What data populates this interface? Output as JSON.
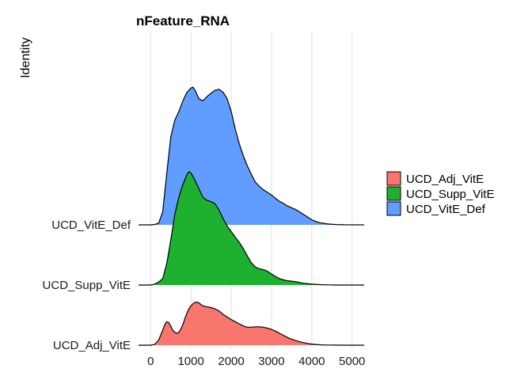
{
  "chart_data": {
    "type": "area",
    "subtype": "ridgeline",
    "title": "nFeature_RNA",
    "xlabel": "",
    "ylabel": "Identity",
    "xlim": [
      -300,
      5300
    ],
    "xticks": [
      0,
      1000,
      2000,
      3000,
      4000,
      5000
    ],
    "xtick_labels": [
      "0",
      "1000",
      "2000",
      "3000",
      "4000",
      "5000"
    ],
    "grid": "vertical",
    "legend_position": "right",
    "series": [
      {
        "name": "UCD_Adj_VitE",
        "color": "#F8766D",
        "x": [
          -300,
          0,
          100,
          200,
          300,
          350,
          400,
          450,
          500,
          550,
          600,
          650,
          700,
          750,
          800,
          850,
          900,
          950,
          1000,
          1050,
          1100,
          1150,
          1200,
          1250,
          1300,
          1400,
          1500,
          1600,
          1700,
          1800,
          1900,
          2000,
          2100,
          2200,
          2300,
          2400,
          2500,
          2600,
          2700,
          2800,
          2900,
          3000,
          3100,
          3200,
          3300,
          3400,
          3500,
          3600,
          3700,
          3800,
          3900,
          4000,
          4200,
          4400,
          4600,
          4800,
          5000,
          5300
        ],
        "density": [
          0,
          0,
          0.02,
          0.12,
          0.35,
          0.48,
          0.55,
          0.53,
          0.45,
          0.35,
          0.3,
          0.28,
          0.3,
          0.38,
          0.48,
          0.62,
          0.75,
          0.85,
          0.92,
          0.97,
          1.0,
          1.01,
          0.99,
          0.95,
          0.92,
          0.9,
          0.88,
          0.85,
          0.8,
          0.72,
          0.66,
          0.6,
          0.55,
          0.5,
          0.45,
          0.42,
          0.42,
          0.43,
          0.43,
          0.42,
          0.4,
          0.37,
          0.33,
          0.28,
          0.23,
          0.18,
          0.14,
          0.11,
          0.08,
          0.06,
          0.04,
          0.025,
          0.01,
          0.004,
          0.001,
          0,
          0,
          0
        ]
      },
      {
        "name": "UCD_Supp_VitE",
        "color": "#1DB12F",
        "x": [
          -300,
          0,
          100,
          200,
          300,
          400,
          500,
          600,
          700,
          800,
          900,
          950,
          1000,
          1100,
          1200,
          1300,
          1400,
          1500,
          1600,
          1700,
          1800,
          1900,
          2000,
          2100,
          2200,
          2300,
          2400,
          2500,
          2600,
          2700,
          2800,
          2900,
          3000,
          3100,
          3200,
          3300,
          3400,
          3500,
          3600,
          3700,
          3800,
          3900,
          4000,
          4200,
          4400,
          4600,
          5300
        ],
        "density": [
          0,
          0,
          0.02,
          0.07,
          0.15,
          0.5,
          1.05,
          1.65,
          2.05,
          2.35,
          2.58,
          2.65,
          2.62,
          2.45,
          2.25,
          2.05,
          1.98,
          1.95,
          1.9,
          1.75,
          1.55,
          1.38,
          1.25,
          1.12,
          1.0,
          0.85,
          0.68,
          0.52,
          0.42,
          0.38,
          0.36,
          0.32,
          0.26,
          0.2,
          0.15,
          0.12,
          0.1,
          0.09,
          0.08,
          0.06,
          0.04,
          0.03,
          0.02,
          0.01,
          0.004,
          0,
          0
        ]
      },
      {
        "name": "UCD_VitE_Def",
        "color": "#619CFF",
        "x": [
          -300,
          0,
          100,
          200,
          300,
          400,
          500,
          600,
          700,
          800,
          900,
          1000,
          1050,
          1100,
          1200,
          1300,
          1400,
          1500,
          1600,
          1700,
          1800,
          1900,
          2000,
          2100,
          2200,
          2300,
          2400,
          2500,
          2600,
          2700,
          2800,
          2900,
          3000,
          3100,
          3200,
          3300,
          3400,
          3500,
          3600,
          3700,
          3800,
          3900,
          4000,
          4100,
          4200,
          4400,
          4600,
          4800,
          5300
        ],
        "density": [
          0,
          0,
          0.01,
          0.04,
          0.3,
          1.2,
          2.05,
          2.45,
          2.65,
          2.9,
          3.1,
          3.2,
          3.22,
          3.15,
          2.95,
          2.9,
          3.0,
          3.08,
          3.15,
          3.17,
          3.1,
          2.95,
          2.65,
          2.25,
          1.9,
          1.62,
          1.38,
          1.18,
          1.0,
          0.9,
          0.82,
          0.76,
          0.7,
          0.62,
          0.55,
          0.5,
          0.44,
          0.4,
          0.36,
          0.3,
          0.24,
          0.18,
          0.12,
          0.08,
          0.05,
          0.02,
          0.008,
          0.002,
          0
        ]
      }
    ]
  }
}
